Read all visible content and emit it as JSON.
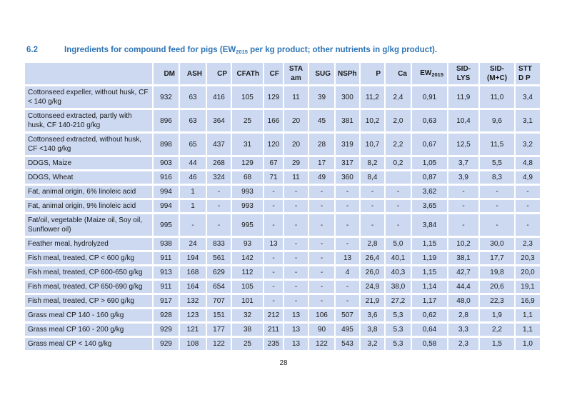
{
  "page": {
    "section_number": "6.2",
    "title_prefix": "Ingredients for compound feed for pigs (EW",
    "title_sub": "2015",
    "title_suffix": " per kg product; other nutrients in g/kg product).",
    "page_number": "28"
  },
  "colors": {
    "accent_blue": "#2e74b5",
    "cell_blue": "#ccd9f1",
    "grid_white": "#ffffff"
  },
  "table": {
    "columns": [
      {
        "lines": [
          "DM"
        ]
      },
      {
        "lines": [
          "ASH"
        ]
      },
      {
        "lines": [
          "CP"
        ]
      },
      {
        "lines": [
          "CFATh"
        ]
      },
      {
        "lines": [
          "CF"
        ]
      },
      {
        "lines": [
          "STA",
          "am"
        ]
      },
      {
        "lines": [
          "SUG"
        ]
      },
      {
        "lines": [
          "NSPh"
        ]
      },
      {
        "lines": [
          "P"
        ]
      },
      {
        "lines": [
          "Ca"
        ]
      },
      {
        "main": "EW",
        "sub": "2015"
      },
      {
        "lines": [
          "SID-",
          "LYS"
        ]
      },
      {
        "lines": [
          "SID-",
          "(M+C)"
        ]
      },
      {
        "lines": [
          "STT",
          "D P"
        ]
      }
    ],
    "rows": [
      {
        "name": "Cottonseed expeller, without husk, CF < 140 g/kg",
        "values": [
          "932",
          "63",
          "416",
          "105",
          "129",
          "11",
          "39",
          "300",
          "11,2",
          "2,4",
          "0,91",
          "11,9",
          "11,0",
          "3,4"
        ]
      },
      {
        "name": "Cottonseed extracted, partly with husk, CF 140-210 g/kg",
        "values": [
          "896",
          "63",
          "364",
          "25",
          "166",
          "20",
          "45",
          "381",
          "10,2",
          "2,0",
          "0,63",
          "10,4",
          "9,6",
          "3,1"
        ]
      },
      {
        "name": "Cottonseed extracted, without husk, CF <140 g/kg",
        "values": [
          "898",
          "65",
          "437",
          "31",
          "120",
          "20",
          "28",
          "319",
          "10,7",
          "2,2",
          "0,67",
          "12,5",
          "11,5",
          "3,2"
        ]
      },
      {
        "name": "DDGS, Maize",
        "values": [
          "903",
          "44",
          "268",
          "129",
          "67",
          "29",
          "17",
          "317",
          "8,2",
          "0,2",
          "1,05",
          "3,7",
          "5,5",
          "4,8"
        ]
      },
      {
        "name": "DDGS, Wheat",
        "values": [
          "916",
          "46",
          "324",
          "68",
          "71",
          "11",
          "49",
          "360",
          "8,4",
          "",
          "0,87",
          "3,9",
          "8,3",
          "4,9"
        ]
      },
      {
        "name": "Fat, animal origin, 6% linoleic acid",
        "values": [
          "994",
          "1",
          "-",
          "993",
          "-",
          "-",
          "-",
          "-",
          "-",
          "-",
          "3,62",
          "-",
          "-",
          "-"
        ]
      },
      {
        "name": "Fat, animal origin, 9% linoleic acid",
        "values": [
          "994",
          "1",
          "-",
          "993",
          "-",
          "-",
          "-",
          "-",
          "-",
          "-",
          "3,65",
          "-",
          "-",
          "-"
        ]
      },
      {
        "name": "Fat/oil, vegetable (Maize oil, Soy oil, Sunflower oil)",
        "values": [
          "995",
          "-",
          "-",
          "995",
          "-",
          "-",
          "-",
          "-",
          "-",
          "-",
          "3,84",
          "-",
          "-",
          "-"
        ]
      },
      {
        "name": "Feather meal, hydrolyzed",
        "values": [
          "938",
          "24",
          "833",
          "93",
          "13",
          "-",
          "-",
          "-",
          "2,8",
          "5,0",
          "1,15",
          "10,2",
          "30,0",
          "2,3"
        ]
      },
      {
        "name": "Fish meal, treated, CP < 600 g/kg",
        "values": [
          "911",
          "194",
          "561",
          "142",
          "-",
          "-",
          "-",
          "13",
          "26,4",
          "40,1",
          "1,19",
          "38,1",
          "17,7",
          "20,3"
        ]
      },
      {
        "name": "Fish meal, treated, CP 600-650 g/kg",
        "values": [
          "913",
          "168",
          "629",
          "112",
          "-",
          "-",
          "-",
          "4",
          "26,0",
          "40,3",
          "1,15",
          "42,7",
          "19,8",
          "20,0"
        ]
      },
      {
        "name": "Fish meal, treated, CP 650-690 g/kg",
        "values": [
          "911",
          "164",
          "654",
          "105",
          "-",
          "-",
          "-",
          "-",
          "24,9",
          "38,0",
          "1,14",
          "44,4",
          "20,6",
          "19,1"
        ]
      },
      {
        "name": "Fish meal, treated, CP > 690 g/kg",
        "values": [
          "917",
          "132",
          "707",
          "101",
          "-",
          "-",
          "-",
          "-",
          "21,9",
          "27,2",
          "1,17",
          "48,0",
          "22,3",
          "16,9"
        ]
      },
      {
        "name": "Grass meal CP 140 - 160 g/kg",
        "values": [
          "928",
          "123",
          "151",
          "32",
          "212",
          "13",
          "106",
          "507",
          "3,6",
          "5,3",
          "0,62",
          "2,8",
          "1,9",
          "1,1"
        ]
      },
      {
        "name": "Grass meal CP 160 - 200 g/kg",
        "values": [
          "929",
          "121",
          "177",
          "38",
          "211",
          "13",
          "90",
          "495",
          "3,8",
          "5,3",
          "0,64",
          "3,3",
          "2,2",
          "1,1"
        ]
      },
      {
        "name": "Grass meal CP < 140 g/kg",
        "values": [
          "929",
          "108",
          "122",
          "25",
          "235",
          "13",
          "122",
          "543",
          "3,2",
          "5,3",
          "0,58",
          "2,3",
          "1,5",
          "1,0"
        ]
      }
    ]
  }
}
